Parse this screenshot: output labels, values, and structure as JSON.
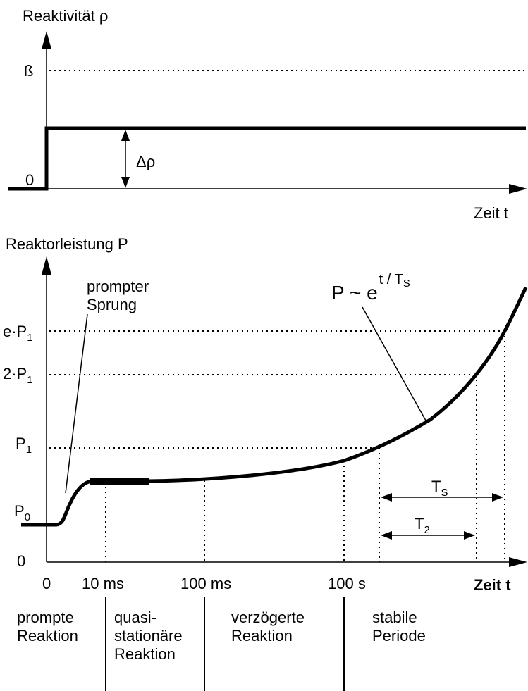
{
  "top_chart": {
    "y_axis_label": "Reaktivität ρ",
    "beta_label": "ß",
    "zero_label": "0",
    "delta_label": "Δρ",
    "x_axis_label": "Zeit  t"
  },
  "bottom_chart": {
    "y_axis_label": "Reaktorleistung P",
    "zero_label": "0",
    "p0_label": "P",
    "p0_sub": "0",
    "p1_label": "P",
    "p1_sub": "1",
    "two_p1_label": "2·P",
    "two_p1_sub": "1",
    "e_p1_label": "e·P",
    "e_p1_sub": "1",
    "prompt_jump_line1": "prompter",
    "prompt_jump_line2": "Sprung",
    "formula_main": "P ~ e",
    "formula_exp": "t / T",
    "formula_exp_sub": "S",
    "ts_label": "T",
    "ts_sub": "S",
    "t2_label": "T",
    "t2_sub": "2",
    "x_ticks": [
      "0",
      "10 ms",
      "100 ms",
      "100 s"
    ],
    "x_axis_label": "Zeit  t"
  },
  "phases": [
    {
      "line1": "prompte",
      "line2": "Reaktion",
      "line3": ""
    },
    {
      "line1": "quasi-",
      "line2": "stationäre",
      "line3": "Reaktion"
    },
    {
      "line1": "verzögerte",
      "line2": "Reaktion",
      "line3": ""
    },
    {
      "line1": "stabile",
      "line2": "Periode",
      "line3": ""
    }
  ]
}
